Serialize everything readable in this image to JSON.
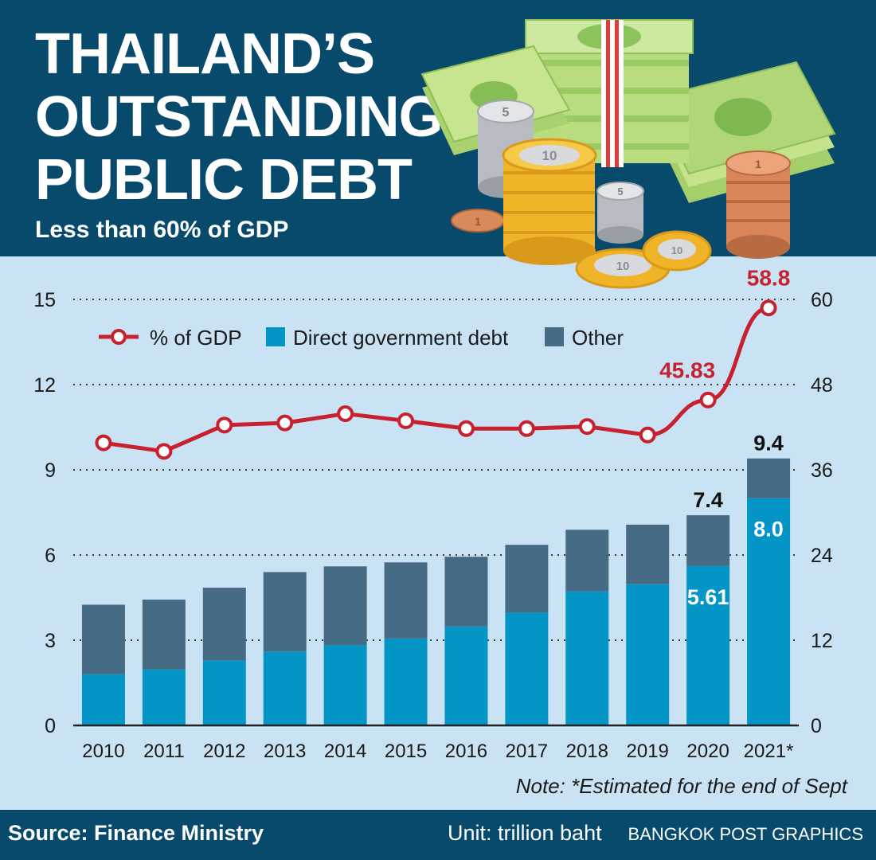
{
  "header": {
    "title_lines": [
      "THAILAND’S",
      "OUTSTANDING",
      "PUBLIC DEBT"
    ],
    "subtitle": "Less than 60% of GDP"
  },
  "chart_data": {
    "type": "bar",
    "categories": [
      "2010",
      "2011",
      "2012",
      "2013",
      "2014",
      "2015",
      "2016",
      "2017",
      "2018",
      "2019",
      "2020",
      "2021*"
    ],
    "series": [
      {
        "name": "Direct government debt",
        "values": [
          1.8,
          1.97,
          2.28,
          2.6,
          2.83,
          3.06,
          3.48,
          3.97,
          4.72,
          4.97,
          5.61,
          8.0
        ],
        "color": "#0395c6"
      },
      {
        "name": "Other",
        "values": [
          2.45,
          2.46,
          2.57,
          2.8,
          2.77,
          2.68,
          2.46,
          2.39,
          2.17,
          2.1,
          1.79,
          1.4
        ],
        "color": "#466b85"
      }
    ],
    "line_series": {
      "name": "% of GDP",
      "axis": "right",
      "values": [
        39.8,
        38.6,
        42.3,
        42.6,
        43.9,
        42.9,
        41.8,
        41.8,
        42.1,
        40.9,
        45.83,
        58.8
      ],
      "color": "#c72130"
    },
    "left_axis": {
      "ylim": [
        0,
        15
      ],
      "ticks": [
        "0",
        "3",
        "6",
        "9",
        "12",
        "15"
      ]
    },
    "right_axis": {
      "ylim": [
        0,
        60
      ],
      "ticks": [
        "0",
        "12",
        "24",
        "36",
        "48",
        "60"
      ]
    },
    "total_labels": [
      {
        "index": 10,
        "text": "7.4"
      },
      {
        "index": 11,
        "text": "9.4"
      }
    ],
    "direct_labels": [
      {
        "index": 10,
        "text": "5.61"
      },
      {
        "index": 11,
        "text": "8.0"
      }
    ],
    "line_labels": [
      {
        "index": 10,
        "text": "45.83"
      },
      {
        "index": 11,
        "text": "58.8"
      }
    ],
    "legend": {
      "position": "top-left",
      "items": [
        "% of GDP",
        "Direct government debt",
        "Other"
      ]
    },
    "grid": true
  },
  "colors": {
    "header_bg": "#074a6b",
    "chart_bg": "#c9e2f4",
    "direct": "#0395c6",
    "other": "#466b85",
    "gdp_line": "#c72130"
  },
  "note": "Note: *Estimated for the end of Sept",
  "footer": {
    "source": "Source:  Finance Ministry",
    "unit": "Unit: trillion baht",
    "credit": "BANGKOK POST GRAPHICS"
  },
  "illustration": {
    "icon": "money-stack-coins-icon",
    "coin_labels": [
      "5",
      "10",
      "10",
      "5",
      "10",
      "1",
      "1"
    ]
  }
}
